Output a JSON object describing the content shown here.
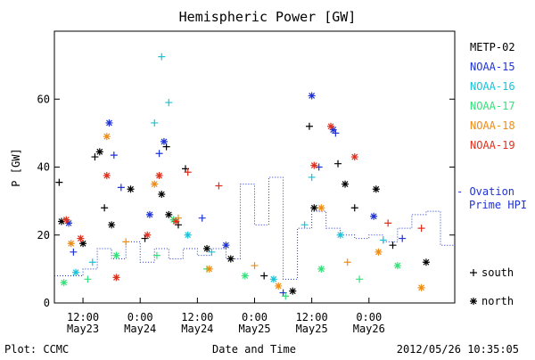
{
  "chart_data": {
    "type": "scatter",
    "title": "Hemispheric Power [GW]",
    "ylabel": "P [GW]",
    "xlabel": "Date and Time",
    "ylim": [
      0,
      80
    ],
    "yticks": [
      0,
      20,
      40,
      60
    ],
    "xlim": [
      "2012-05-23 06:00",
      "2012-05-26 18:00"
    ],
    "xticks": [
      {
        "t": "2012-05-23 12:00",
        "top": "12:00",
        "bottom": "May23"
      },
      {
        "t": "2012-05-24 00:00",
        "top": "0:00",
        "bottom": "May24"
      },
      {
        "t": "2012-05-24 12:00",
        "top": "12:00",
        "bottom": "May24"
      },
      {
        "t": "2012-05-25 00:00",
        "top": "0:00",
        "bottom": "May25"
      },
      {
        "t": "2012-05-25 12:00",
        "top": "12:00",
        "bottom": "May25"
      },
      {
        "t": "2012-05-26 00:00",
        "top": "0:00",
        "bottom": "May26"
      }
    ],
    "legend_position": "right",
    "series": [
      {
        "name": "METP-02",
        "color": "#000000",
        "points": [
          {
            "t": "2012-05-23 07:00",
            "y": 35.5,
            "m": "+"
          },
          {
            "t": "2012-05-23 07:30",
            "y": 24,
            "m": "*"
          },
          {
            "t": "2012-05-23 12:00",
            "y": 17.5,
            "m": "*"
          },
          {
            "t": "2012-05-23 14:30",
            "y": 43,
            "m": "+"
          },
          {
            "t": "2012-05-23 15:30",
            "y": 44.5,
            "m": "*"
          },
          {
            "t": "2012-05-23 16:30",
            "y": 28,
            "m": "+"
          },
          {
            "t": "2012-05-23 18:00",
            "y": 23,
            "m": "*"
          },
          {
            "t": "2012-05-23 22:00",
            "y": 33.5,
            "m": "*"
          },
          {
            "t": "2012-05-24 01:00",
            "y": 19,
            "m": "+"
          },
          {
            "t": "2012-05-24 04:30",
            "y": 32,
            "m": "*"
          },
          {
            "t": "2012-05-24 05:30",
            "y": 46,
            "m": "+"
          },
          {
            "t": "2012-05-24 06:00",
            "y": 26,
            "m": "*"
          },
          {
            "t": "2012-05-24 09:30",
            "y": 39.5,
            "m": "+"
          },
          {
            "t": "2012-05-24 08:00",
            "y": 23,
            "m": "+"
          },
          {
            "t": "2012-05-24 14:00",
            "y": 16,
            "m": "*"
          },
          {
            "t": "2012-05-24 19:00",
            "y": 13,
            "m": "*"
          },
          {
            "t": "2012-05-25 02:00",
            "y": 8,
            "m": "+"
          },
          {
            "t": "2012-05-25 08:00",
            "y": 3.5,
            "m": "*"
          },
          {
            "t": "2012-05-25 11:30",
            "y": 52,
            "m": "+"
          },
          {
            "t": "2012-05-25 12:30",
            "y": 28,
            "m": "*"
          },
          {
            "t": "2012-05-25 17:30",
            "y": 41,
            "m": "+"
          },
          {
            "t": "2012-05-25 19:00",
            "y": 35,
            "m": "*"
          },
          {
            "t": "2012-05-25 21:00",
            "y": 28,
            "m": "+"
          },
          {
            "t": "2012-05-26 01:30",
            "y": 33.5,
            "m": "*"
          },
          {
            "t": "2012-05-26 05:00",
            "y": 17,
            "m": "+"
          },
          {
            "t": "2012-05-26 12:00",
            "y": 12,
            "m": "*"
          }
        ]
      },
      {
        "name": "NOAA-15",
        "color": "#1f33d6",
        "points": [
          {
            "t": "2012-05-23 09:00",
            "y": 23.5,
            "m": "*"
          },
          {
            "t": "2012-05-23 10:00",
            "y": 15,
            "m": "+"
          },
          {
            "t": "2012-05-23 17:30",
            "y": 53,
            "m": "*"
          },
          {
            "t": "2012-05-23 18:30",
            "y": 43.5,
            "m": "+"
          },
          {
            "t": "2012-05-23 20:00",
            "y": 34,
            "m": "+"
          },
          {
            "t": "2012-05-24 02:00",
            "y": 26,
            "m": "*"
          },
          {
            "t": "2012-05-24 04:00",
            "y": 44,
            "m": "+"
          },
          {
            "t": "2012-05-24 05:00",
            "y": 47.5,
            "m": "*"
          },
          {
            "t": "2012-05-24 13:00",
            "y": 25,
            "m": "+"
          },
          {
            "t": "2012-05-24 18:00",
            "y": 17,
            "m": "*"
          },
          {
            "t": "2012-05-25 06:00",
            "y": 3,
            "m": "+"
          },
          {
            "t": "2012-05-25 12:00",
            "y": 61,
            "m": "*"
          },
          {
            "t": "2012-05-25 13:30",
            "y": 40,
            "m": "+"
          },
          {
            "t": "2012-05-25 16:30",
            "y": 51,
            "m": "*"
          },
          {
            "t": "2012-05-25 17:00",
            "y": 50,
            "m": "+"
          },
          {
            "t": "2012-05-26 01:00",
            "y": 25.5,
            "m": "*"
          },
          {
            "t": "2012-05-26 07:00",
            "y": 19,
            "m": "+"
          }
        ]
      },
      {
        "name": "NOAA-16",
        "color": "#19c3d8",
        "points": [
          {
            "t": "2012-05-23 10:30",
            "y": 9,
            "m": "*"
          },
          {
            "t": "2012-05-23 14:00",
            "y": 12,
            "m": "+"
          },
          {
            "t": "2012-05-24 03:00",
            "y": 53,
            "m": "+"
          },
          {
            "t": "2012-05-24 04:30",
            "y": 72.5,
            "m": "+"
          },
          {
            "t": "2012-05-24 06:00",
            "y": 59,
            "m": "+"
          },
          {
            "t": "2012-05-24 10:00",
            "y": 20,
            "m": "*"
          },
          {
            "t": "2012-05-24 15:00",
            "y": 15,
            "m": "+"
          },
          {
            "t": "2012-05-25 04:00",
            "y": 7,
            "m": "*"
          },
          {
            "t": "2012-05-25 10:30",
            "y": 23,
            "m": "+"
          },
          {
            "t": "2012-05-25 12:00",
            "y": 37,
            "m": "+"
          },
          {
            "t": "2012-05-25 18:00",
            "y": 20,
            "m": "*"
          },
          {
            "t": "2012-05-26 03:00",
            "y": 18.5,
            "m": "+"
          }
        ]
      },
      {
        "name": "NOAA-17",
        "color": "#35e07a",
        "points": [
          {
            "t": "2012-05-23 08:00",
            "y": 6,
            "m": "*"
          },
          {
            "t": "2012-05-23 13:00",
            "y": 7,
            "m": "+"
          },
          {
            "t": "2012-05-23 19:00",
            "y": 14,
            "m": "*"
          },
          {
            "t": "2012-05-24 03:30",
            "y": 14,
            "m": "+"
          },
          {
            "t": "2012-05-24 07:00",
            "y": 24.5,
            "m": "*"
          },
          {
            "t": "2012-05-24 14:00",
            "y": 10,
            "m": "+"
          },
          {
            "t": "2012-05-24 22:00",
            "y": 8,
            "m": "*"
          },
          {
            "t": "2012-05-25 06:30",
            "y": 2,
            "m": "+"
          },
          {
            "t": "2012-05-25 14:00",
            "y": 10,
            "m": "*"
          },
          {
            "t": "2012-05-25 22:00",
            "y": 7,
            "m": "+"
          },
          {
            "t": "2012-05-26 06:00",
            "y": 11,
            "m": "*"
          }
        ]
      },
      {
        "name": "NOAA-18",
        "color": "#ee8c14",
        "points": [
          {
            "t": "2012-05-23 09:30",
            "y": 17.5,
            "m": "*"
          },
          {
            "t": "2012-05-23 17:00",
            "y": 49,
            "m": "*"
          },
          {
            "t": "2012-05-23 21:00",
            "y": 18,
            "m": "+"
          },
          {
            "t": "2012-05-24 03:00",
            "y": 35,
            "m": "*"
          },
          {
            "t": "2012-05-24 08:00",
            "y": 25,
            "m": "+"
          },
          {
            "t": "2012-05-24 14:30",
            "y": 10,
            "m": "*"
          },
          {
            "t": "2012-05-25 00:00",
            "y": 11,
            "m": "+"
          },
          {
            "t": "2012-05-25 05:00",
            "y": 5,
            "m": "*"
          },
          {
            "t": "2012-05-25 14:00",
            "y": 28,
            "m": "*"
          },
          {
            "t": "2012-05-25 19:30",
            "y": 12,
            "m": "+"
          },
          {
            "t": "2012-05-26 02:00",
            "y": 15,
            "m": "*"
          },
          {
            "t": "2012-05-26 11:00",
            "y": 4.5,
            "m": "*"
          }
        ]
      },
      {
        "name": "NOAA-19",
        "color": "#e0301e",
        "points": [
          {
            "t": "2012-05-23 08:30",
            "y": 24.5,
            "m": "*"
          },
          {
            "t": "2012-05-23 11:30",
            "y": 19,
            "m": "*"
          },
          {
            "t": "2012-05-23 17:00",
            "y": 37.5,
            "m": "*"
          },
          {
            "t": "2012-05-23 19:00",
            "y": 7.5,
            "m": "*"
          },
          {
            "t": "2012-05-24 01:30",
            "y": 20,
            "m": "*"
          },
          {
            "t": "2012-05-24 04:00",
            "y": 37.5,
            "m": "*"
          },
          {
            "t": "2012-05-24 07:30",
            "y": 24,
            "m": "*"
          },
          {
            "t": "2012-05-24 10:00",
            "y": 38.5,
            "m": "+"
          },
          {
            "t": "2012-05-24 16:30",
            "y": 34.5,
            "m": "+"
          },
          {
            "t": "2012-05-25 12:30",
            "y": 40.5,
            "m": "*"
          },
          {
            "t": "2012-05-25 16:00",
            "y": 52,
            "m": "*"
          },
          {
            "t": "2012-05-25 21:00",
            "y": 43,
            "m": "*"
          },
          {
            "t": "2012-05-26 04:00",
            "y": 23.5,
            "m": "+"
          },
          {
            "t": "2012-05-26 11:00",
            "y": 22,
            "m": "+"
          }
        ]
      }
    ],
    "ovation": {
      "name": "Ovation Prime HPI",
      "label_lines": [
        "- Ovation",
        "Prime HPI"
      ],
      "color": "#1f33d6",
      "steps": [
        {
          "t": "2012-05-23 06:00",
          "y": 8
        },
        {
          "t": "2012-05-23 12:00",
          "y": 10
        },
        {
          "t": "2012-05-23 15:00",
          "y": 16
        },
        {
          "t": "2012-05-23 18:00",
          "y": 13
        },
        {
          "t": "2012-05-23 21:00",
          "y": 18
        },
        {
          "t": "2012-05-24 00:00",
          "y": 12
        },
        {
          "t": "2012-05-24 03:00",
          "y": 16
        },
        {
          "t": "2012-05-24 06:00",
          "y": 13
        },
        {
          "t": "2012-05-24 09:00",
          "y": 16
        },
        {
          "t": "2012-05-24 12:00",
          "y": 14
        },
        {
          "t": "2012-05-24 15:00",
          "y": 16
        },
        {
          "t": "2012-05-24 18:00",
          "y": 13
        },
        {
          "t": "2012-05-24 21:00",
          "y": 35
        },
        {
          "t": "2012-05-25 00:00",
          "y": 23
        },
        {
          "t": "2012-05-25 03:00",
          "y": 37
        },
        {
          "t": "2012-05-25 06:00",
          "y": 7
        },
        {
          "t": "2012-05-25 09:00",
          "y": 22
        },
        {
          "t": "2012-05-25 12:00",
          "y": 27
        },
        {
          "t": "2012-05-25 15:00",
          "y": 22
        },
        {
          "t": "2012-05-25 18:00",
          "y": 20
        },
        {
          "t": "2012-05-25 21:00",
          "y": 19
        },
        {
          "t": "2012-05-26 00:00",
          "y": 20
        },
        {
          "t": "2012-05-26 03:00",
          "y": 18
        },
        {
          "t": "2012-05-26 06:00",
          "y": 22
        },
        {
          "t": "2012-05-26 09:00",
          "y": 26
        },
        {
          "t": "2012-05-26 12:00",
          "y": 27
        },
        {
          "t": "2012-05-26 15:00",
          "y": 17
        }
      ]
    },
    "marker_legend": [
      {
        "symbol": "+",
        "label": "south"
      },
      {
        "symbol": "*",
        "label": "north"
      }
    ]
  },
  "footer": {
    "left": "Plot: CCMC",
    "center": "Date and Time",
    "right": "2012/05/26 10:35:05"
  }
}
